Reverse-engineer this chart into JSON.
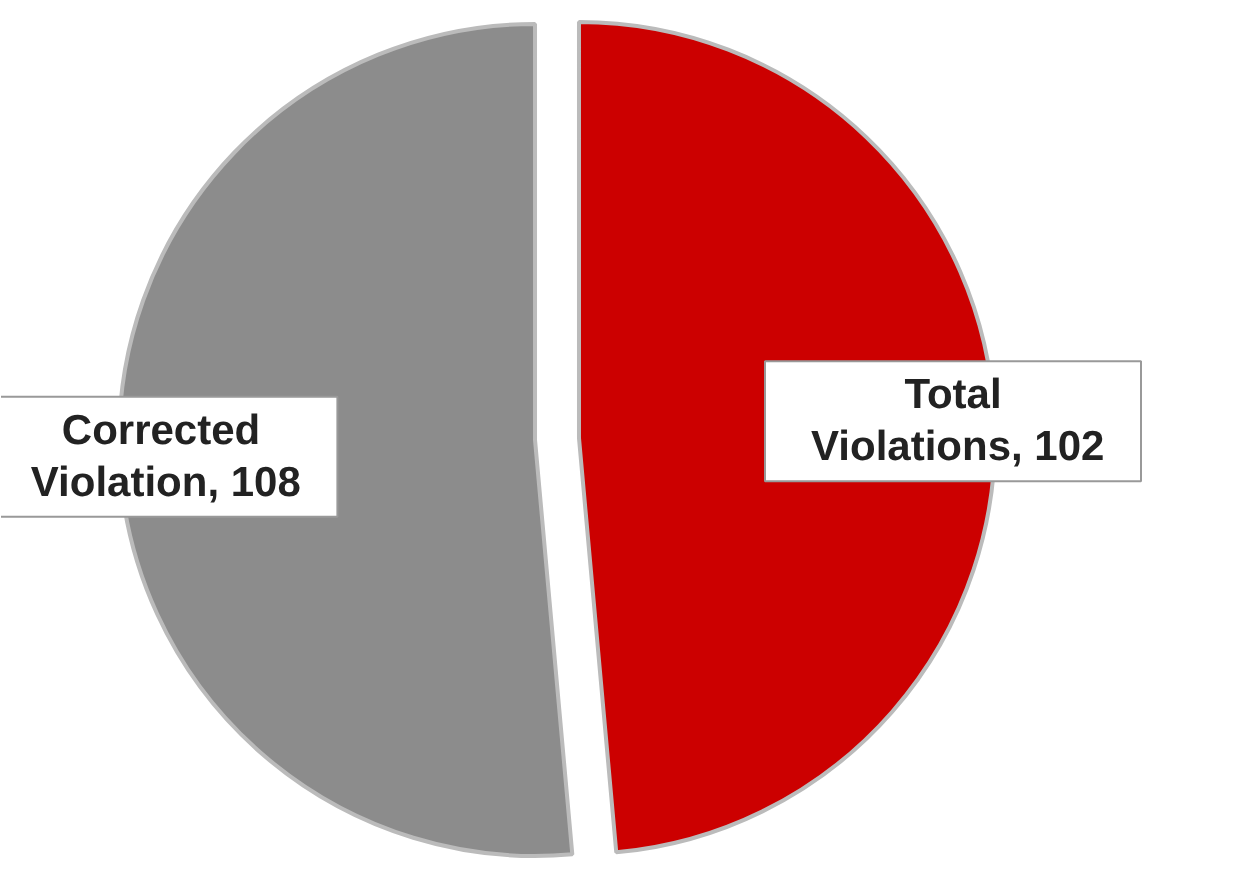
{
  "chart_data": {
    "type": "pie",
    "categories": [
      "Total Violations",
      "Corrected Violation"
    ],
    "values": [
      102,
      108
    ],
    "colors": [
      "#cc0000",
      "#8c8c8c"
    ],
    "value_labels": [
      ", 102",
      ", 108"
    ]
  }
}
